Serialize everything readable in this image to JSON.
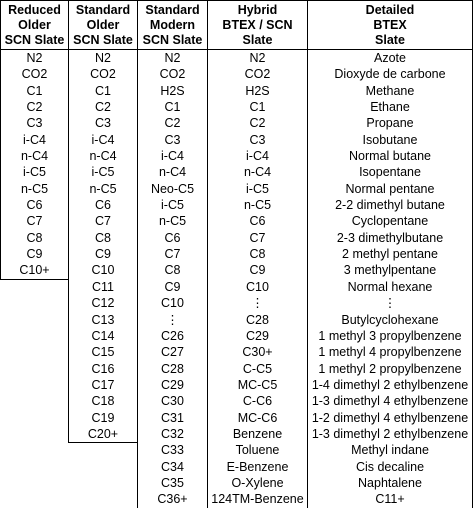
{
  "table": {
    "columns": [
      {
        "header": [
          "Reduced",
          "Older",
          "SCN Slate"
        ],
        "cells": [
          "N2",
          "CO2",
          "C1",
          "C2",
          "C3",
          "i-C4",
          "n-C4",
          "i-C5",
          "n-C5",
          "C6",
          "C7",
          "C8",
          "C9",
          "C10+"
        ]
      },
      {
        "header": [
          "Standard",
          "Older",
          "SCN Slate"
        ],
        "cells": [
          "N2",
          "CO2",
          "C1",
          "C2",
          "C3",
          "i-C4",
          "n-C4",
          "i-C5",
          "n-C5",
          "C6",
          "C7",
          "C8",
          "C9",
          "C10",
          "C11",
          "C12",
          "C13",
          "C14",
          "C15",
          "C16",
          "C17",
          "C18",
          "C19",
          "C20+"
        ]
      },
      {
        "header": [
          "Standard",
          "Modern",
          "SCN Slate"
        ],
        "cells": [
          "N2",
          "CO2",
          "H2S",
          "C1",
          "C2",
          "C3",
          "i-C4",
          "n-C4",
          "Neo-C5",
          "i-C5",
          "n-C5",
          "C6",
          "C7",
          "C8",
          "C9",
          "C10",
          "⋮",
          "C26",
          "C27",
          "C28",
          "C29",
          "C30",
          "C31",
          "C32",
          "C33",
          "C34",
          "C35",
          "C36+"
        ]
      },
      {
        "header": [
          "Hybrid",
          "BTEX / SCN",
          "Slate"
        ],
        "cells": [
          "N2",
          "CO2",
          "H2S",
          "C1",
          "C2",
          "C3",
          "i-C4",
          "n-C4",
          "i-C5",
          "n-C5",
          "C6",
          "C7",
          "C8",
          "C9",
          "C10",
          "⋮",
          "C28",
          "C29",
          "C30+",
          "C-C5",
          "MC-C5",
          "C-C6",
          "MC-C6",
          "Benzene",
          "Toluene",
          "E-Benzene",
          "O-Xylene",
          "124TM-Benzene"
        ]
      },
      {
        "header": [
          "Detailed",
          "BTEX",
          "Slate"
        ],
        "cells": [
          "Azote",
          "Dioxyde de carbone",
          "Methane",
          "Ethane",
          "Propane",
          "Isobutane",
          "Normal butane",
          "Isopentane",
          "Normal pentane",
          "2-2 dimethyl butane",
          "Cyclopentane",
          "2-3 dimethylbutane",
          "2 methyl pentane",
          "3 methylpentane",
          "Normal hexane",
          "⋮",
          "Butylcyclohexane",
          "1 methyl 3 propylbenzene",
          "1 methyl 4 propylbenzene",
          "1 methyl 2 propylbenzene",
          "1-4 dimethyl 2 ethylbenzene",
          "1-3 dimethyl 4 ethylbenzene",
          "1-2 dimethyl 4 ethylbenzene",
          "1-3 dimethyl 2 ethylbenzene",
          "Methyl indane",
          "Cis decaline",
          "Naphtalene",
          "C11+"
        ]
      }
    ]
  }
}
